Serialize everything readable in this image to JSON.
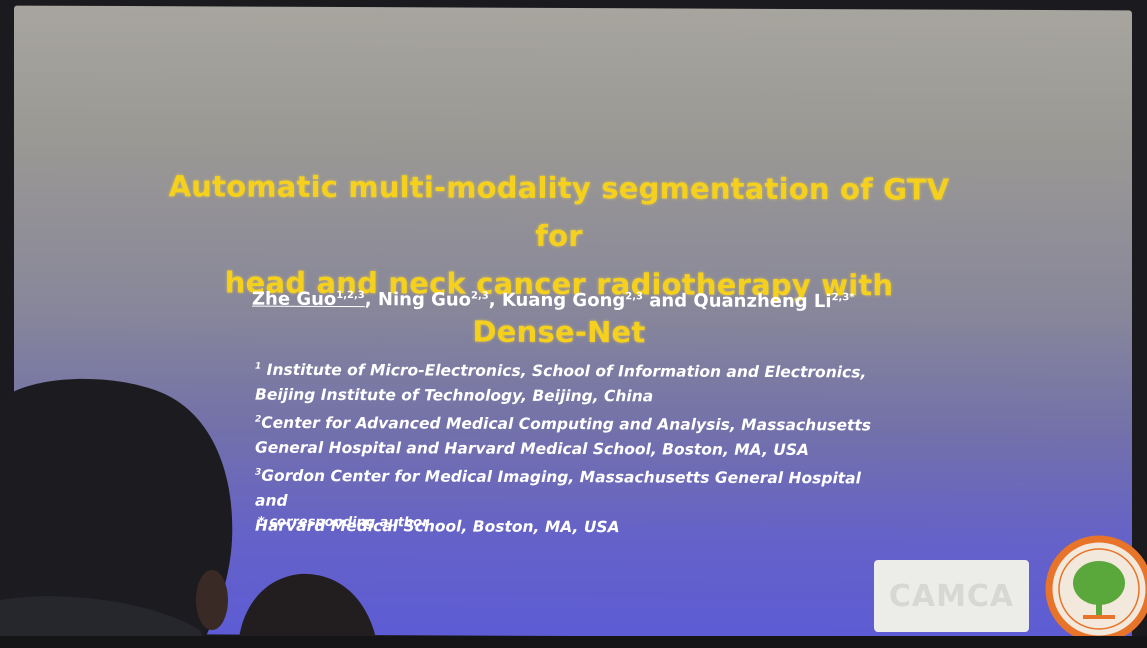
{
  "slide": {
    "title_lines": [
      "Automatic multi-modality segmentation of GTV for",
      "head and neck cancer radiotherapy with Dense-Net"
    ],
    "authors": [
      {
        "name": "Zhe Guo",
        "sup": "1,2,3"
      },
      {
        "name": "Ning Guo",
        "sup": "2,3"
      },
      {
        "name": "Kuang Gong",
        "sup": "2,3"
      },
      {
        "name": "Quanzheng Li",
        "sup": "2,3*"
      }
    ],
    "author_separators": [
      ", ",
      ", ",
      " and "
    ],
    "affiliations": [
      {
        "mark": "1",
        "lines": [
          "Institute of Micro-Electronics, School of Information and Electronics,",
          "Beijing Institute of Technology, Beijing, China"
        ]
      },
      {
        "mark": "2",
        "lines": [
          "Center for Advanced Medical Computing and Analysis, Massachusetts",
          "General Hospital and Harvard Medical School, Boston, MA, USA"
        ]
      },
      {
        "mark": "3",
        "lines": [
          "Gordon Center for Medical Imaging, Massachusetts General Hospital and",
          "Harvard Medical School, Boston, MA, USA"
        ]
      }
    ],
    "corresponding_note": "* corresponding author",
    "logo_text": "CAMCA"
  },
  "colors": {
    "title": "#f5d11e",
    "body_text": "#ffffff",
    "seal_ring": "#e8742a",
    "seal_tree": "#5aa83c"
  }
}
